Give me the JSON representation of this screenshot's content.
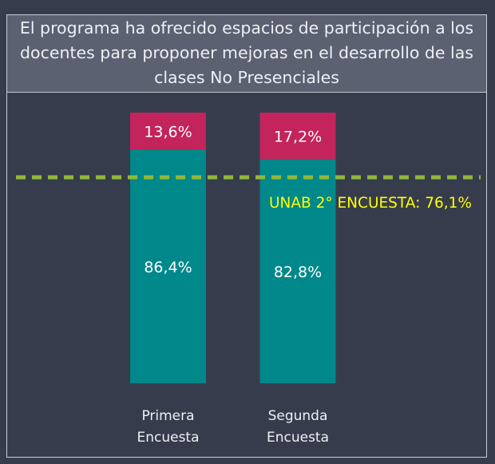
{
  "chart_data": {
    "type": "stacked_bar",
    "title": "El programa ha ofrecido espacios de participación a los docentes para proponer mejoras en el desarrollo de las clases No Presenciales",
    "categories": [
      "Primera Encuesta",
      "Segunda Encuesta"
    ],
    "series": [
      {
        "color": "#00888a",
        "values": [
          86.4,
          82.8
        ],
        "value_labels": [
          "86,4%",
          "82,8%"
        ]
      },
      {
        "color": "#c3245c",
        "values": [
          13.6,
          17.2
        ],
        "value_labels": [
          "13,6%",
          "17,2%"
        ]
      }
    ],
    "reference_line": {
      "value": 76.1,
      "label": "UNAB 2° ENCUESTA: 76,1%",
      "color": "#93b83a",
      "label_color": "#ffff00"
    }
  }
}
